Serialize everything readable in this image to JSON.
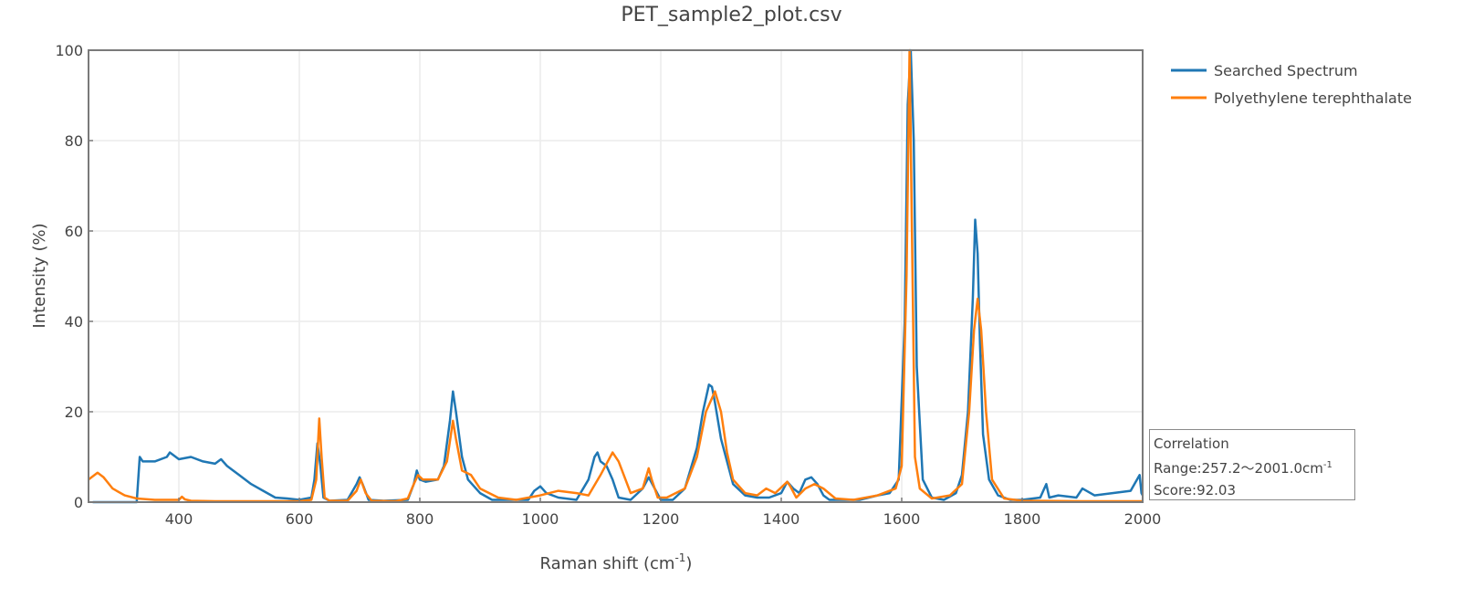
{
  "chart_data": {
    "type": "line",
    "title": "PET_sample2_plot.csv",
    "xlabel": "Raman shift (cm⁻¹)",
    "xlabel_main": "Raman shift (cm",
    "xlabel_sup": "-1",
    "xlabel_close": ")",
    "ylabel": "Intensity (%)",
    "xlim": [
      250,
      2000
    ],
    "ylim": [
      0,
      100
    ],
    "xticks": [
      400,
      600,
      800,
      1000,
      1200,
      1400,
      1600,
      1800,
      2000
    ],
    "yticks": [
      0,
      20,
      40,
      60,
      80,
      100
    ],
    "grid": true,
    "legend_position": "right-top",
    "legend": [
      "Searched Spectrum",
      "Polyethylene terephthalate"
    ],
    "series": [
      {
        "name": "Searched Spectrum",
        "color": "#1f77b4",
        "x": [
          257,
          330,
          335,
          340,
          360,
          380,
          385,
          400,
          420,
          440,
          460,
          470,
          480,
          500,
          520,
          540,
          560,
          580,
          600,
          620,
          625,
          630,
          635,
          640,
          650,
          680,
          695,
          700,
          705,
          715,
          740,
          780,
          790,
          795,
          800,
          810,
          830,
          840,
          850,
          855,
          860,
          870,
          880,
          900,
          920,
          950,
          980,
          990,
          1000,
          1010,
          1030,
          1060,
          1080,
          1090,
          1095,
          1100,
          1110,
          1120,
          1130,
          1150,
          1170,
          1180,
          1190,
          1200,
          1220,
          1240,
          1260,
          1270,
          1280,
          1285,
          1290,
          1300,
          1310,
          1320,
          1340,
          1360,
          1380,
          1400,
          1410,
          1420,
          1430,
          1440,
          1450,
          1460,
          1470,
          1480,
          1500,
          1530,
          1560,
          1580,
          1595,
          1605,
          1610,
          1615,
          1620,
          1625,
          1635,
          1650,
          1670,
          1690,
          1700,
          1710,
          1718,
          1722,
          1726,
          1730,
          1735,
          1745,
          1760,
          1780,
          1800,
          1830,
          1840,
          1845,
          1860,
          1890,
          1900,
          1920,
          1950,
          1980,
          1995,
          1998,
          2000
        ],
        "y": [
          0,
          0,
          10,
          9,
          9,
          10,
          11,
          9.5,
          10,
          9,
          8.5,
          9.5,
          8,
          6,
          4,
          2.5,
          1,
          0.8,
          0.5,
          1,
          5,
          13,
          8,
          1,
          0.3,
          0.5,
          4,
          5.5,
          4,
          0.5,
          0.3,
          0.5,
          4,
          7,
          5,
          4.5,
          5,
          8,
          18,
          24.5,
          20,
          10,
          5,
          2,
          0.5,
          0.5,
          0.5,
          2.5,
          3.5,
          2,
          1,
          0.5,
          5,
          10,
          11,
          9,
          8,
          5,
          1,
          0.5,
          3,
          5.5,
          3,
          0.5,
          0.5,
          3,
          12,
          20,
          26,
          25.5,
          22,
          14,
          9,
          4,
          1.5,
          1,
          1,
          2,
          4.5,
          3,
          2,
          5,
          5.5,
          4,
          1.5,
          0.5,
          0.5,
          0.5,
          1.5,
          2,
          5,
          40,
          88,
          100,
          80,
          30,
          5,
          1,
          0.5,
          2,
          6,
          20,
          45,
          62.5,
          55,
          35,
          15,
          5,
          1.5,
          0.5,
          0.5,
          1,
          4,
          1,
          1.5,
          1,
          3,
          1.5,
          2,
          2.5,
          6,
          2,
          1.5
        ]
      },
      {
        "name": "Polyethylene terephthalate",
        "color": "#ff7f0e",
        "x": [
          250,
          265,
          275,
          290,
          310,
          330,
          360,
          400,
          405,
          410,
          420,
          460,
          500,
          560,
          600,
          620,
          628,
          633,
          637,
          642,
          650,
          680,
          695,
          702,
          710,
          720,
          760,
          780,
          790,
          797,
          805,
          830,
          845,
          855,
          860,
          870,
          885,
          900,
          930,
          960,
          1000,
          1030,
          1060,
          1080,
          1100,
          1120,
          1130,
          1150,
          1170,
          1180,
          1185,
          1195,
          1210,
          1240,
          1260,
          1275,
          1290,
          1300,
          1310,
          1320,
          1340,
          1360,
          1375,
          1390,
          1410,
          1415,
          1425,
          1440,
          1455,
          1470,
          1490,
          1520,
          1560,
          1590,
          1600,
          1608,
          1613,
          1617,
          1622,
          1630,
          1650,
          1680,
          1700,
          1712,
          1720,
          1726,
          1732,
          1740,
          1750,
          1770,
          1800,
          1900,
          2000
        ],
        "y": [
          5,
          6.5,
          5.5,
          3,
          1.5,
          0.8,
          0.5,
          0.5,
          1.2,
          0.6,
          0.3,
          0.2,
          0.2,
          0.2,
          0.2,
          0.5,
          5,
          18.5,
          10,
          1,
          0.3,
          0.3,
          2.5,
          5,
          2,
          0.3,
          0.2,
          0.8,
          4,
          6,
          5,
          5,
          9,
          18,
          14,
          7,
          6,
          3,
          1,
          0.5,
          1.5,
          2.5,
          2,
          1.5,
          6,
          11,
          9,
          2,
          3,
          7.5,
          5,
          1,
          1,
          3,
          10,
          20,
          24.5,
          20,
          11,
          5,
          2,
          1.5,
          3,
          2,
          4.5,
          3.5,
          1,
          3,
          4,
          3,
          0.8,
          0.5,
          1.5,
          3,
          8,
          50,
          100,
          60,
          10,
          3,
          0.8,
          1.5,
          4,
          20,
          38,
          45,
          38,
          20,
          5,
          0.8,
          0.3,
          0.2,
          0.2
        ]
      }
    ],
    "annotations": {
      "line1": "Correlation",
      "line2_prefix": "Range:257.2～2001.0cm",
      "line2_sup": "-1",
      "line3": "Score:92.03"
    }
  }
}
